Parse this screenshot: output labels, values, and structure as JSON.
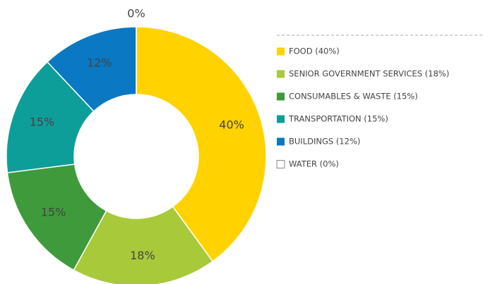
{
  "chart_data": {
    "type": "donut",
    "categories": [
      "FOOD (40%)",
      "SENIOR GOVERNMENT SERVICES (18%)",
      "CONSUMABLES & WASTE (15%)",
      "TRANSPORTATION (15%)",
      "BUILDINGS (12%)",
      "WATER (0%)"
    ],
    "values": [
      40,
      18,
      15,
      15,
      12,
      0
    ],
    "value_labels": [
      "40%",
      "18%",
      "15%",
      "15%",
      "12%",
      "0%"
    ],
    "colors": [
      "#ffd200",
      "#a8c93a",
      "#3f9a3c",
      "#0e9e9a",
      "#0a78c2",
      "#ffffff"
    ]
  }
}
